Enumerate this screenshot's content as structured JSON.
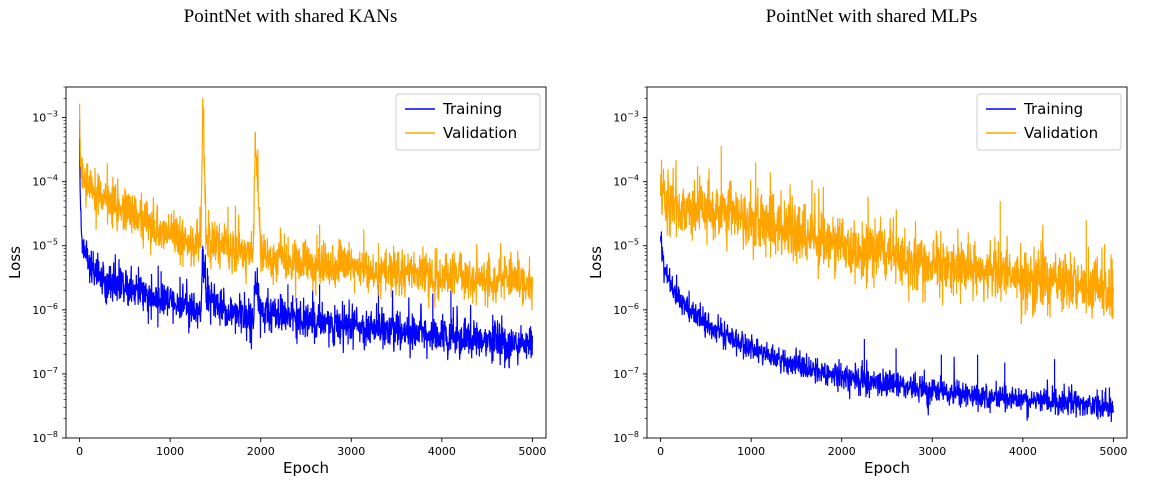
{
  "colors": {
    "training": "#0000ff",
    "validation": "#ffa500"
  },
  "chart_data": [
    {
      "type": "line",
      "title": "PointNet with shared KANs",
      "xlabel": "Epoch",
      "ylabel": "Loss",
      "xlim": [
        -150,
        5150
      ],
      "ylim": [
        1e-08,
        0.003
      ],
      "yscale": "log",
      "xticks": [
        "0",
        "1000",
        "2000",
        "3000",
        "4000",
        "5000"
      ],
      "yticks": [
        {
          "base": "10",
          "exp": "−8"
        },
        {
          "base": "10",
          "exp": "−7"
        },
        {
          "base": "10",
          "exp": "−6"
        },
        {
          "base": "10",
          "exp": "−5"
        },
        {
          "base": "10",
          "exp": "−4"
        },
        {
          "base": "10",
          "exp": "−3"
        }
      ],
      "legend_position": "top-right",
      "series": [
        {
          "name": "Training",
          "x": [
            0,
            5,
            10,
            20,
            40,
            70,
            100,
            150,
            200,
            300,
            400,
            500,
            600,
            800,
            1000,
            1200,
            1340,
            1360,
            1400,
            1600,
            1800,
            1920,
            1940,
            2000,
            2200,
            2500,
            2800,
            3000,
            3300,
            3600,
            4000,
            4400,
            4700,
            5000
          ],
          "y": [
            0.0006,
            0.0001,
            4e-05,
            2e-05,
            1e-05,
            7e-06,
            5e-06,
            4e-06,
            3.5e-06,
            3e-06,
            2.5e-06,
            2.2e-06,
            2e-06,
            1.6e-06,
            1.3e-06,
            1.1e-06,
            1e-06,
            8e-06,
            1.5e-06,
            1e-06,
            8e-07,
            7e-07,
            3e-06,
            9e-07,
            8e-07,
            7e-07,
            6e-07,
            5.5e-07,
            5e-07,
            4.5e-07,
            4e-07,
            3.5e-07,
            3e-07,
            3e-07
          ],
          "spikes": [
            {
              "x": 900,
              "y": 4e-06
            },
            {
              "x": 1360,
              "y": 1e-05
            },
            {
              "x": 1940,
              "y": 4e-06
            },
            {
              "x": 2300,
              "y": 2.5e-06
            },
            {
              "x": 2650,
              "y": 2.5e-06
            },
            {
              "x": 3300,
              "y": 2.5e-06
            },
            {
              "x": 3900,
              "y": 1.8e-06
            },
            {
              "x": 4100,
              "y": 2e-06
            }
          ],
          "noise": 0.3
        },
        {
          "name": "Validation",
          "x": [
            0,
            5,
            10,
            30,
            60,
            100,
            200,
            300,
            400,
            500,
            600,
            800,
            1000,
            1200,
            1340,
            1360,
            1400,
            1600,
            1800,
            1920,
            1940,
            2000,
            2200,
            2500,
            3000,
            3500,
            4000,
            4500,
            5000
          ],
          "y": [
            0.001,
            0.0003,
            0.0002,
            0.00012,
            9e-05,
            8e-05,
            6e-05,
            5e-05,
            4e-05,
            3.5e-05,
            3e-05,
            2e-05,
            1.5e-05,
            1.2e-05,
            1e-05,
            0.002,
            1.2e-05,
            1e-05,
            8e-06,
            7e-06,
            0.0006,
            7e-06,
            6e-06,
            5e-06,
            4.5e-06,
            4e-06,
            3.5e-06,
            3e-06,
            2.8e-06
          ],
          "spikes": [
            {
              "x": 1360,
              "y": 0.0018
            },
            {
              "x": 1940,
              "y": 0.00055
            },
            {
              "x": 2620,
              "y": 1.5e-05
            },
            {
              "x": 3300,
              "y": 1.1e-05
            },
            {
              "x": 3000,
              "y": 9e-06
            }
          ],
          "noise": 0.35
        }
      ]
    },
    {
      "type": "line",
      "title": "PointNet with shared MLPs",
      "xlabel": "Epoch",
      "ylabel": "Loss",
      "xlim": [
        -150,
        5150
      ],
      "ylim": [
        1e-08,
        0.003
      ],
      "yscale": "log",
      "xticks": [
        "0",
        "1000",
        "2000",
        "3000",
        "4000",
        "5000"
      ],
      "yticks": [
        {
          "base": "10",
          "exp": "−8"
        },
        {
          "base": "10",
          "exp": "−7"
        },
        {
          "base": "10",
          "exp": "−6"
        },
        {
          "base": "10",
          "exp": "−5"
        },
        {
          "base": "10",
          "exp": "−4"
        },
        {
          "base": "10",
          "exp": "−3"
        }
      ],
      "legend_position": "top-right",
      "series": [
        {
          "name": "Training",
          "x": [
            0,
            5,
            20,
            50,
            100,
            200,
            300,
            500,
            700,
            1000,
            1300,
            1600,
            2000,
            2500,
            3000,
            3500,
            4000,
            4500,
            5000
          ],
          "y": [
            2e-05,
            1.2e-05,
            7e-06,
            4e-06,
            2.5e-06,
            1.5e-06,
            1e-06,
            6e-07,
            4e-07,
            2.5e-07,
            1.7e-07,
            1.2e-07,
            9e-08,
            7e-08,
            5.5e-08,
            4.5e-08,
            4e-08,
            3.5e-08,
            3e-08
          ],
          "spikes": [
            {
              "x": 2250,
              "y": 3.5e-07
            },
            {
              "x": 2600,
              "y": 2.5e-07
            },
            {
              "x": 3100,
              "y": 2e-07
            },
            {
              "x": 3500,
              "y": 2e-07
            },
            {
              "x": 3800,
              "y": 1.5e-07
            },
            {
              "x": 4350,
              "y": 1.7e-07
            }
          ],
          "noise": 0.2
        },
        {
          "name": "Validation",
          "x": [
            0,
            50,
            200,
            500,
            800,
            1000,
            1500,
            2000,
            2500,
            3000,
            3500,
            4000,
            4500,
            5000
          ],
          "y": [
            8e-05,
            5e-05,
            4e-05,
            3.5e-05,
            3e-05,
            2.5e-05,
            1.5e-05,
            1e-05,
            7e-06,
            5e-06,
            4e-06,
            3e-06,
            2.5e-06,
            2e-06
          ],
          "spikes": [
            {
              "x": 10,
              "y": 0.00022
            },
            {
              "x": 670,
              "y": 0.00036
            },
            {
              "x": 1050,
              "y": 0.0002
            },
            {
              "x": 3750,
              "y": 5e-05
            },
            {
              "x": 4700,
              "y": 2.5e-05
            }
          ],
          "noise": 0.45
        }
      ]
    }
  ]
}
